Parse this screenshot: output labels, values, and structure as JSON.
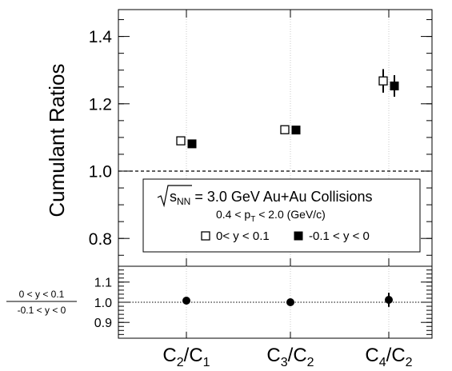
{
  "chart_data": [
    {
      "type": "scatter",
      "title": "",
      "xlabel": "",
      "ylabel": "Cumulant Ratios",
      "ylim": [
        0.7,
        1.48
      ],
      "yticks": [
        "0.8",
        "1.0",
        "1.2",
        "1.4"
      ],
      "categories": [
        {
          "label": "C2/C1",
          "main": [
            "C",
            "C"
          ],
          "subs": [
            "2",
            "1"
          ]
        },
        {
          "label": "C3/C2",
          "main": [
            "C",
            "C"
          ],
          "subs": [
            "3",
            "2"
          ]
        },
        {
          "label": "C4/C2",
          "main": [
            "C",
            "C"
          ],
          "subs": [
            "4",
            "2"
          ]
        }
      ],
      "reference_line": 1.0,
      "series": [
        {
          "name": "0< y < 0.1",
          "marker": "open-square",
          "values": [
            1.09,
            1.123,
            1.268
          ],
          "errors": [
            0.0,
            0.0,
            0.035
          ]
        },
        {
          "name": "-0.1 < y < 0",
          "marker": "filled-square",
          "values": [
            1.081,
            1.122,
            1.253
          ],
          "errors": [
            0.0,
            0.0,
            0.032
          ]
        }
      ],
      "legend": {
        "placement": "lower-right",
        "sqrt_label": "s",
        "sqrt_sub": "NN",
        "line1_rest": " = 3.0 GeV Au+Au Collisions",
        "line2_prefix": "0.4 < p",
        "line2_sub": "T",
        "line2_suffix": " < 2.0 (GeV/c)"
      },
      "grid": "vertical-dotted-at-categories"
    },
    {
      "type": "scatter",
      "ylabel_num": "0 < y < 0.1",
      "ylabel_den": "-0.1 < y < 0",
      "ylim": [
        0.8,
        1.19
      ],
      "yticks": [
        "0.9",
        "1.0",
        "1.1"
      ],
      "reference_line": 1.0,
      "series": [
        {
          "name": "ratio",
          "marker": "filled-circle",
          "values": [
            1.008,
            1.0,
            1.012
          ],
          "errors": [
            0.0,
            0.0,
            0.035
          ]
        }
      ]
    }
  ]
}
